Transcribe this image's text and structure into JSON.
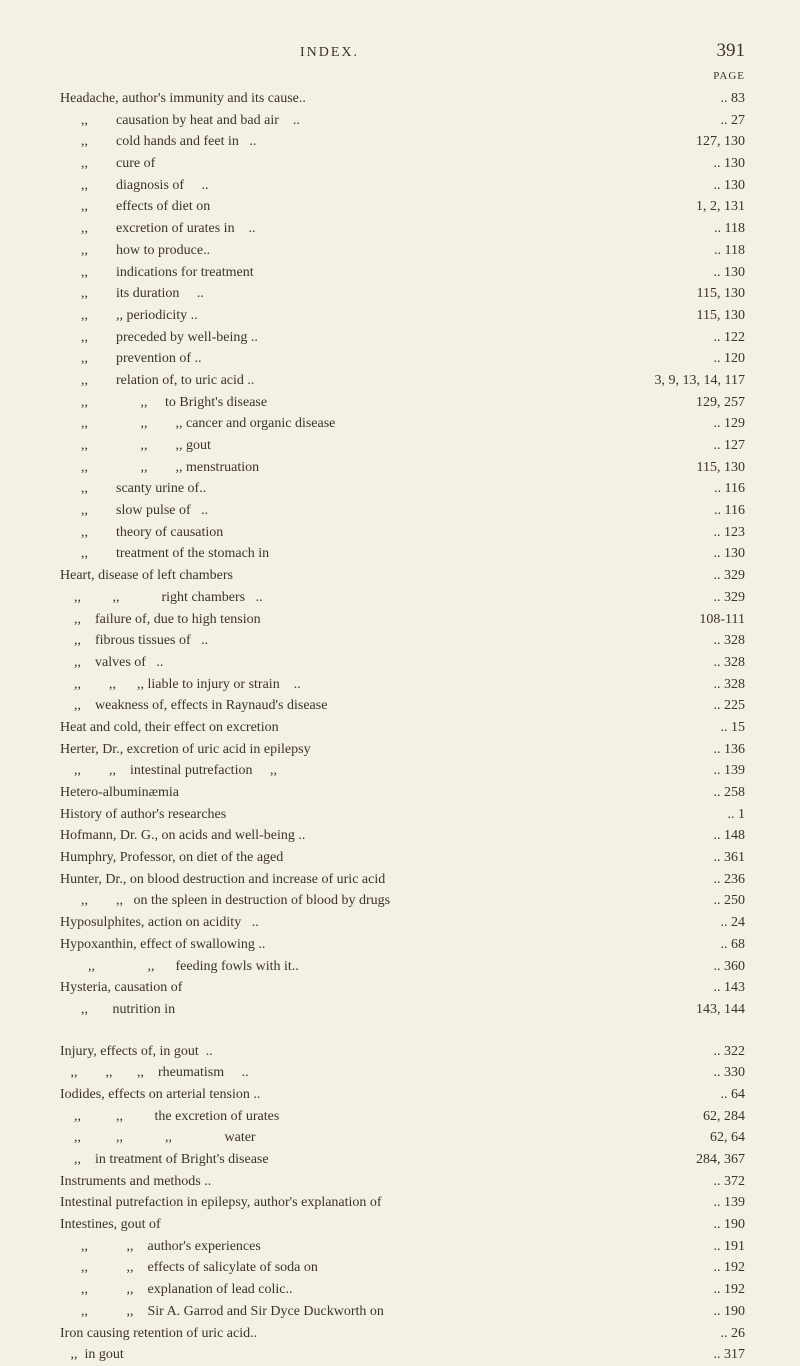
{
  "header": {
    "title": "INDEX.",
    "pageNumber": "391",
    "pageLabel": "PAGE"
  },
  "entries": [
    {
      "text": "Headache, author's immunity and its cause..",
      "page": ".. 83"
    },
    {
      "text": "      ,,        causation by heat and bad air    ..",
      "page": ".. 27"
    },
    {
      "text": "      ,,        cold hands and feet in   ..",
      "page": "127, 130"
    },
    {
      "text": "      ,,        cure of",
      "page": ".. 130"
    },
    {
      "text": "      ,,        diagnosis of     ..",
      "page": ".. 130"
    },
    {
      "text": "      ,,        effects of diet on",
      "page": "1, 2, 131"
    },
    {
      "text": "      ,,        excretion of urates in    ..",
      "page": ".. 118"
    },
    {
      "text": "      ,,        how to produce..",
      "page": ".. 118"
    },
    {
      "text": "      ,,        indications for treatment",
      "page": ".. 130"
    },
    {
      "text": "      ,,        its duration     ..",
      "page": "115, 130"
    },
    {
      "text": "      ,,        ,, periodicity ..",
      "page": "115, 130"
    },
    {
      "text": "      ,,        preceded by well-being ..",
      "page": ".. 122"
    },
    {
      "text": "      ,,        prevention of ..",
      "page": ".. 120"
    },
    {
      "text": "      ,,        relation of, to uric acid ..",
      "page": "3, 9, 13, 14, 117"
    },
    {
      "text": "      ,,               ,,     to Bright's disease",
      "page": "129, 257"
    },
    {
      "text": "      ,,               ,,        ,, cancer and organic disease",
      "page": ".. 129"
    },
    {
      "text": "      ,,               ,,        ,, gout",
      "page": ".. 127"
    },
    {
      "text": "      ,,               ,,        ,, menstruation",
      "page": "115, 130"
    },
    {
      "text": "      ,,        scanty urine of..",
      "page": ".. 116"
    },
    {
      "text": "      ,,        slow pulse of   ..",
      "page": ".. 116"
    },
    {
      "text": "      ,,        theory of causation",
      "page": ".. 123"
    },
    {
      "text": "      ,,        treatment of the stomach in",
      "page": ".. 130"
    },
    {
      "text": "Heart, disease of left chambers",
      "page": ".. 329"
    },
    {
      "text": "    ,,         ,,            right chambers   ..",
      "page": ".. 329"
    },
    {
      "text": "    ,,    failure of, due to high tension",
      "page": "108-111"
    },
    {
      "text": "    ,,    fibrous tissues of   ..",
      "page": ".. 328"
    },
    {
      "text": "    ,,    valves of   ..",
      "page": ".. 328"
    },
    {
      "text": "    ,,        ,,      ,, liable to injury or strain    ..",
      "page": ".. 328"
    },
    {
      "text": "    ,,    weakness of, effects in Raynaud's disease",
      "page": ".. 225"
    },
    {
      "text": "Heat and cold, their effect on excretion",
      "page": ".. 15"
    },
    {
      "text": "Herter, Dr., excretion of uric acid in epilepsy",
      "page": ".. 136"
    },
    {
      "text": "    ,,        ,,    intestinal putrefaction     ,,",
      "page": ".. 139"
    },
    {
      "text": "Hetero-albuminæmia",
      "page": ".. 258"
    },
    {
      "text": "History of author's researches",
      "page": ".. 1"
    },
    {
      "text": "Hofmann, Dr. G., on acids and well-being ..",
      "page": ".. 148"
    },
    {
      "text": "Humphry, Professor, on diet of the aged",
      "page": ".. 361"
    },
    {
      "text": "Hunter, Dr., on blood destruction and increase of uric acid",
      "page": ".. 236"
    },
    {
      "text": "      ,,        ,,   on the spleen in destruction of blood by drugs",
      "page": ".. 250"
    },
    {
      "text": "Hyposulphites, action on acidity   ..",
      "page": ".. 24"
    },
    {
      "text": "Hypoxanthin, effect of swallowing ..",
      "page": ".. 68"
    },
    {
      "text": "        ,,               ,,      feeding fowls with it..",
      "page": ".. 360"
    },
    {
      "text": "Hysteria, causation of",
      "page": ".. 143"
    },
    {
      "text": "      ,,       nutrition in",
      "page": "143, 144"
    }
  ],
  "entries2": [
    {
      "text": "Injury, effects of, in gout  ..",
      "page": ".. 322"
    },
    {
      "text": "   ,,        ,,       ,,    rheumatism     ..",
      "page": ".. 330"
    },
    {
      "text": "Iodides, effects on arterial tension ..",
      "page": ".. 64"
    },
    {
      "text": "    ,,          ,,         the excretion of urates",
      "page": "62, 284"
    },
    {
      "text": "    ,,          ,,            ,,               water",
      "page": "62, 64"
    },
    {
      "text": "    ,,    in treatment of Bright's disease",
      "page": "284, 367"
    },
    {
      "text": "Instruments and methods ..",
      "page": ".. 372"
    },
    {
      "text": "Intestinal putrefaction in epilepsy, author's explanation of",
      "page": ".. 139"
    },
    {
      "text": "Intestines, gout of",
      "page": ".. 190"
    },
    {
      "text": "      ,,           ,,    author's experiences",
      "page": ".. 191"
    },
    {
      "text": "      ,,           ,,    effects of salicylate of soda on",
      "page": ".. 192"
    },
    {
      "text": "      ,,           ,,    explanation of lead colic..",
      "page": ".. 192"
    },
    {
      "text": "      ,,           ,,    Sir A. Garrod and Sir Dyce Duckworth on",
      "page": ".. 190"
    },
    {
      "text": "Iron causing retention of uric acid..",
      "page": ".. 26"
    },
    {
      "text": "   ,,  in gout",
      "page": ".. 317"
    }
  ]
}
